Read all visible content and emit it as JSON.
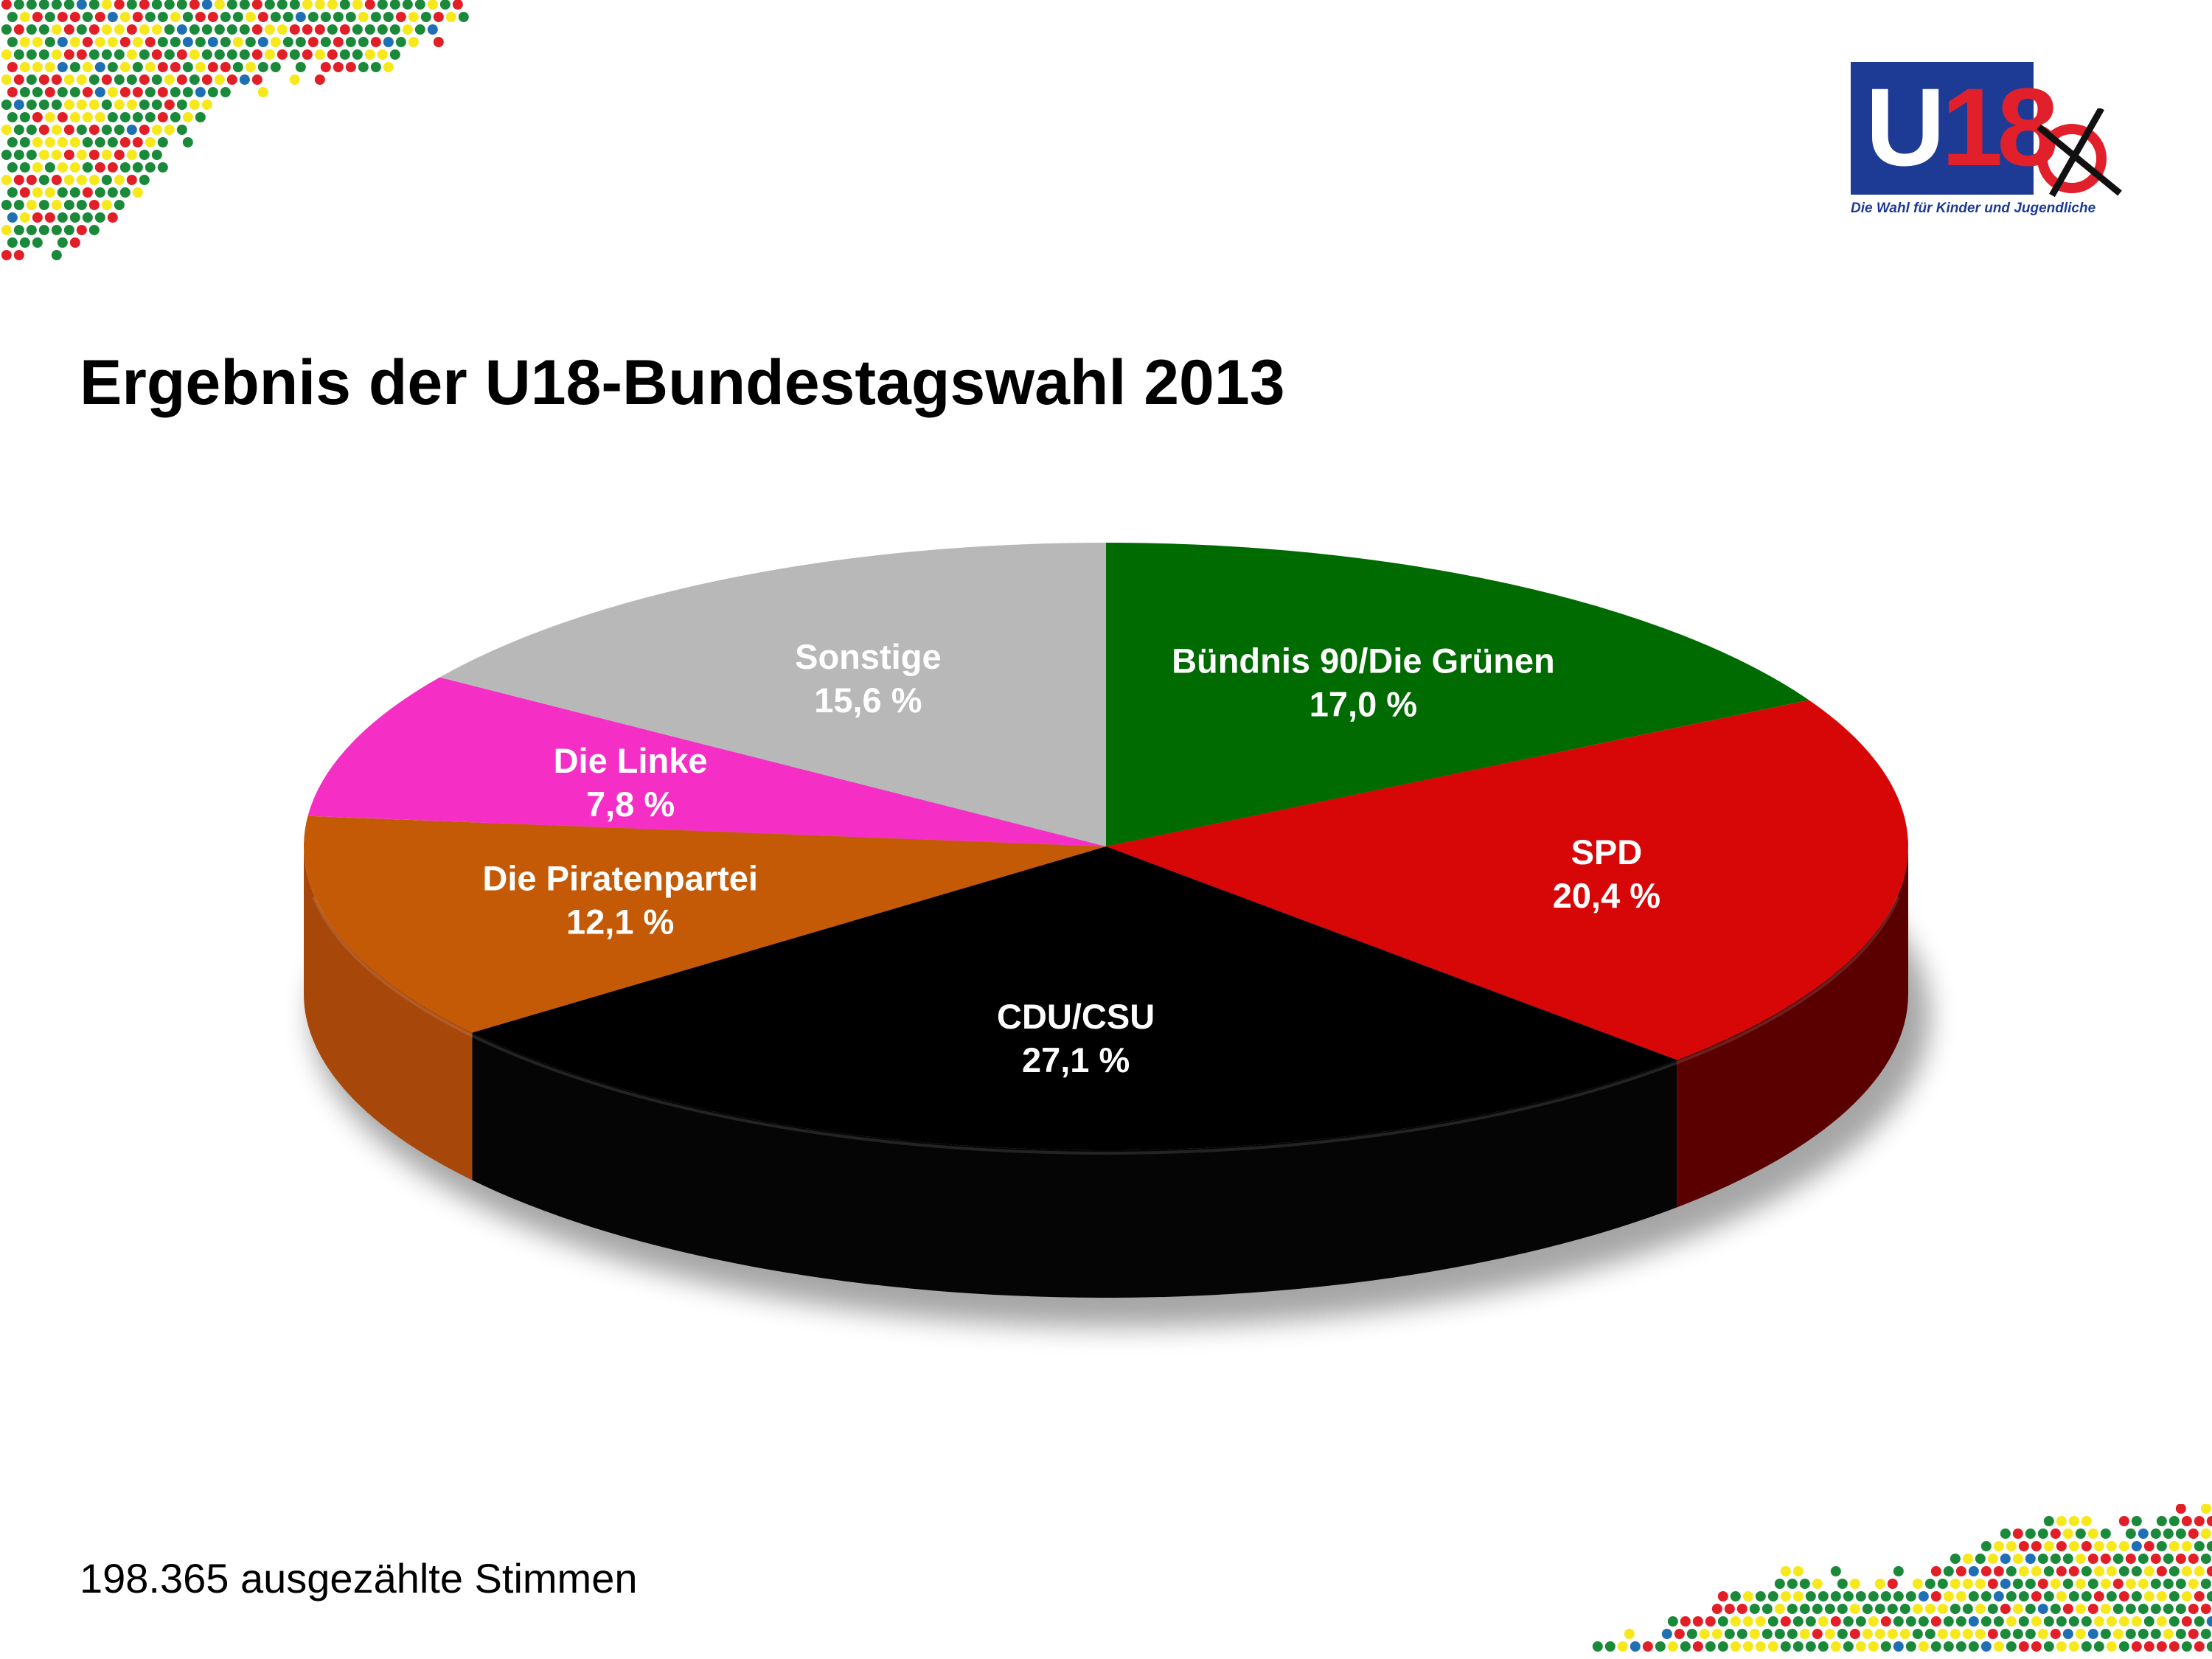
{
  "title": "Ergebnis der U18-Bundestagswahl 2013",
  "logo": {
    "mark": "U18",
    "subtitle": "Die Wahl für Kinder und Jugendliche",
    "colors": {
      "box": "#1d3b95",
      "number": "#e2202b"
    }
  },
  "footer": {
    "total_votes": "198.365 ausgezählte Stimmen"
  },
  "decoration": {
    "dot_colors": [
      "#1a8a3a",
      "#e21f26",
      "#f6e81b",
      "#1f6fb4"
    ]
  },
  "chart_data": {
    "type": "pie",
    "style": "3d",
    "slices": [
      {
        "label": "Bündnis 90/Die Grünen",
        "value": 17.0,
        "value_label": "17,0 %",
        "color": "#006b00",
        "side_color": "#003f00"
      },
      {
        "label": "SPD",
        "value": 20.4,
        "value_label": "20,4 %",
        "color": "#d70707",
        "side_color": "#5a0000"
      },
      {
        "label": "CDU/CSU",
        "value": 27.1,
        "value_label": "27,1 %",
        "color": "#000000",
        "side_color": "#050505"
      },
      {
        "label": "Die Piratenpartei",
        "value": 12.1,
        "value_label": "12,1 %",
        "color": "#c55a06",
        "side_color": "#a8470a"
      },
      {
        "label": "Die Linke",
        "value": 7.8,
        "value_label": "7,8 %",
        "color": "#f52fc6",
        "side_color": "#c01f96"
      },
      {
        "label": "Sonstige",
        "value": 15.6,
        "value_label": "15,6 %",
        "color": "#b8b8b8",
        "side_color": "#8a8a8a"
      }
    ],
    "start_angle": "12 o'clock",
    "direction": "clockwise",
    "labels": "inside slices, bold white"
  }
}
